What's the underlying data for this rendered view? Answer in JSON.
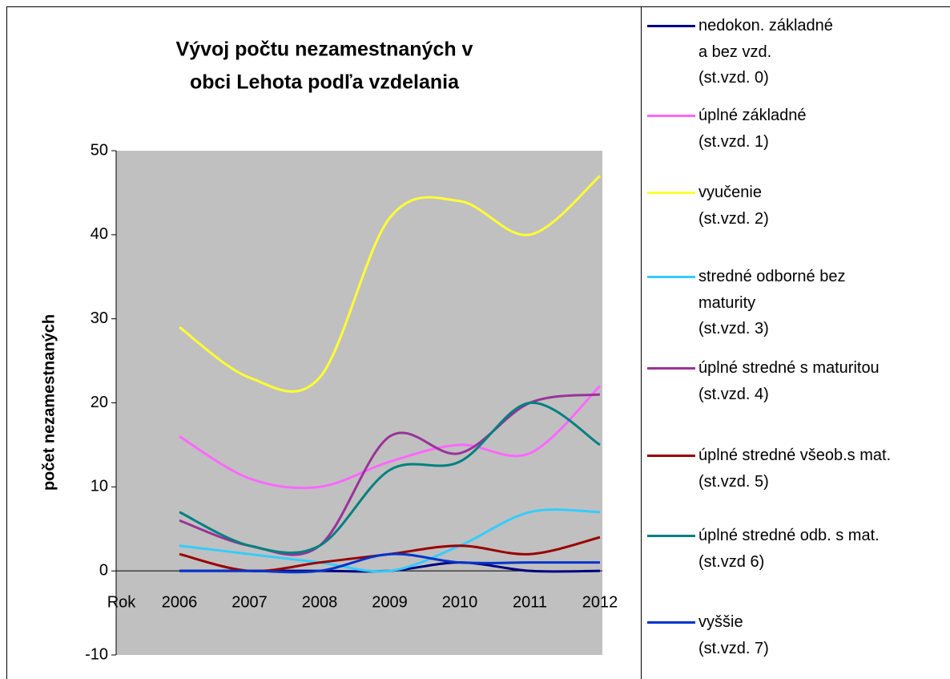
{
  "chart_data": {
    "type": "line",
    "title": [
      "Vývoj počtu nezamestnaných v",
      "obci Lehota podľa vzdelania"
    ],
    "y_label": "počet nezamestnaných",
    "categories": [
      "Rok",
      "2006",
      "2007",
      "2008",
      "2009",
      "2010",
      "2011",
      "2012"
    ],
    "ylim": [
      -10,
      50
    ],
    "yticks": [
      -10,
      0,
      10,
      20,
      30,
      40,
      50
    ],
    "smooth": true,
    "plot_color": "#c0c0c0",
    "legend": "right",
    "series": [
      {
        "name": "nedokon. základné\na bez vzd.\n(st.vzd. 0)",
        "color": "#000080",
        "values": [
          null,
          0,
          0,
          0,
          0,
          1,
          0,
          0
        ]
      },
      {
        "name": "úplné základné\n(st.vzd. 1)",
        "color": "#ff66ff",
        "values": [
          null,
          16,
          11,
          10,
          13,
          15,
          14,
          22
        ]
      },
      {
        "name": "vyučenie\n(st.vzd. 2)",
        "color": "#ffff33",
        "values": [
          null,
          29,
          23,
          23,
          42,
          44,
          40,
          47
        ]
      },
      {
        "name": "stredné odborné bez\nmaturity\n(st.vzd. 3)",
        "color": "#33ccff",
        "values": [
          null,
          3,
          2,
          1,
          0,
          3,
          7,
          7
        ]
      },
      {
        "name": "úplné stredné s maturitou\n(st.vzd. 4)",
        "color": "#993399",
        "values": [
          null,
          6,
          3,
          3,
          16,
          14,
          20,
          21
        ]
      },
      {
        "name": "úplné stredné všeob.s mat.\n(st.vzd. 5)",
        "color": "#990000",
        "values": [
          null,
          2,
          0,
          1,
          2,
          3,
          2,
          4
        ]
      },
      {
        "name": "úplné stredné odb. s mat.\n(st.vzd 6)",
        "color": "#008080",
        "values": [
          null,
          7,
          3,
          3,
          12,
          13,
          20,
          15
        ]
      },
      {
        "name": "vyššie\n(st.vzd. 7)",
        "color": "#0033cc",
        "values": [
          null,
          0,
          0,
          0,
          2,
          1,
          1,
          1
        ]
      }
    ]
  }
}
